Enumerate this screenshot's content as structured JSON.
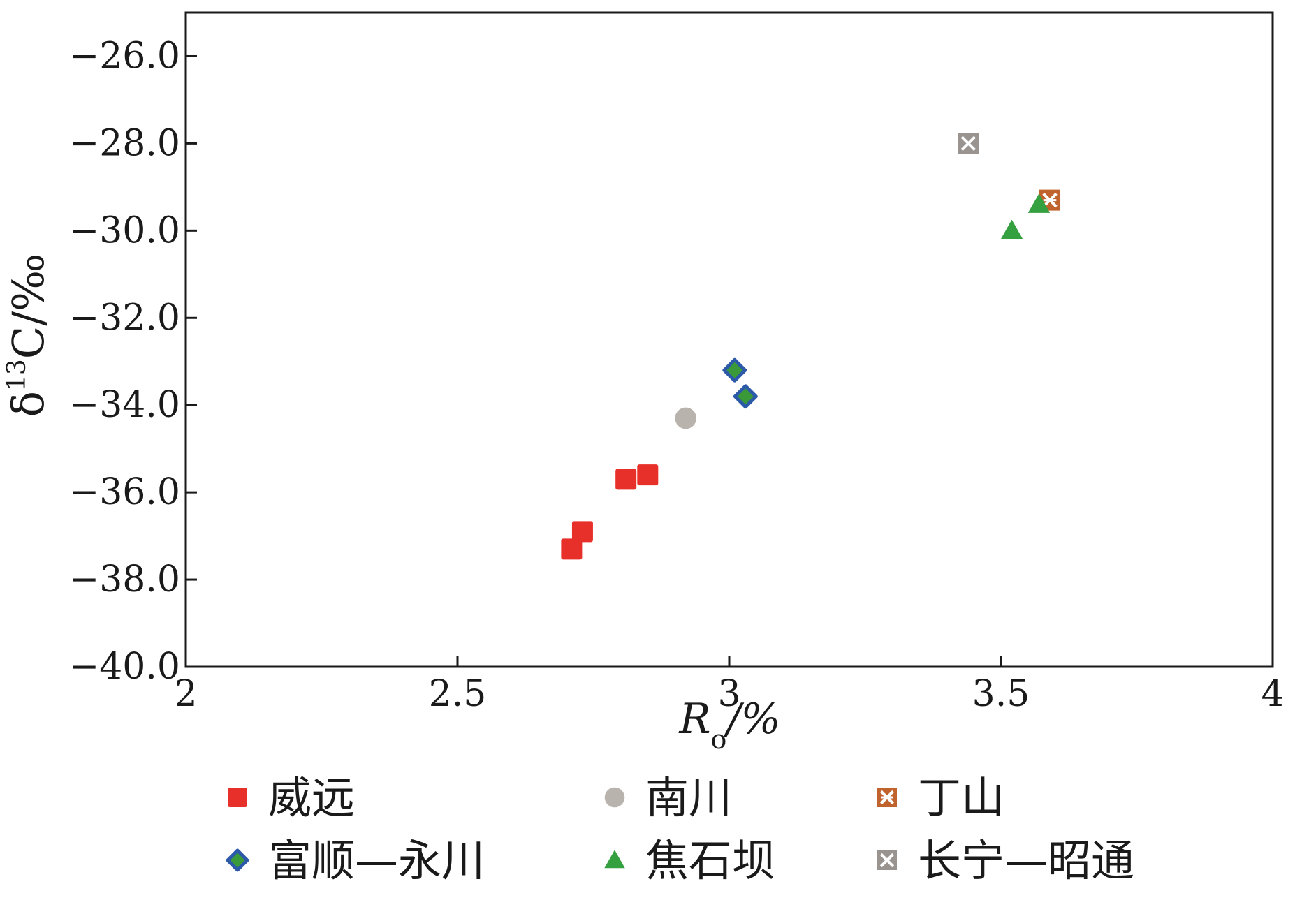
{
  "chart_data": {
    "type": "scatter",
    "title": "",
    "xlabel": {
      "main": "R",
      "sub": "o",
      "unit": "/%"
    },
    "ylabel": {
      "delta": "δ",
      "sup": "13",
      "rest": "C/‰"
    },
    "xlim": [
      2,
      4
    ],
    "ylim": [
      -40,
      -25
    ],
    "xticks": [
      2,
      2.5,
      3,
      3.5,
      4
    ],
    "xtick_labels": [
      "2",
      "2.5",
      "3",
      "3.5",
      "4"
    ],
    "yticks": [
      -26,
      -28,
      -30,
      -32,
      -34,
      -36,
      -38,
      -40
    ],
    "ytick_labels": [
      "−26.0",
      "−28.0",
      "−30.0",
      "−32.0",
      "−34.0",
      "−36.0",
      "−38.0",
      "−40.0"
    ],
    "grid": false,
    "legend_position": "bottom",
    "series": [
      {
        "name": "威远",
        "marker": "square",
        "color": "#e8302a",
        "points": [
          [
            2.71,
            -37.3
          ],
          [
            2.73,
            -36.9
          ],
          [
            2.81,
            -35.7
          ],
          [
            2.85,
            -35.6
          ]
        ]
      },
      {
        "name": "南川",
        "marker": "circle",
        "color": "#b9b3ad",
        "points": [
          [
            2.92,
            -34.3
          ]
        ]
      },
      {
        "name": "丁山",
        "marker": "boxed-asterisk",
        "color": "#c0632c",
        "points": [
          [
            3.59,
            -29.3
          ]
        ]
      },
      {
        "name": "富顺—永川",
        "marker": "diamond",
        "color": "#3a9a3a",
        "edge": "#2c5aa8",
        "points": [
          [
            3.01,
            -33.2
          ],
          [
            3.03,
            -33.8
          ]
        ]
      },
      {
        "name": "焦石坝",
        "marker": "triangle",
        "color": "#35a040",
        "points": [
          [
            3.52,
            -30.0
          ],
          [
            3.57,
            -29.4
          ]
        ]
      },
      {
        "name": "长宁—昭通",
        "marker": "boxed-x",
        "color": "#9a9490",
        "points": [
          [
            3.44,
            -28.0
          ]
        ]
      }
    ]
  }
}
